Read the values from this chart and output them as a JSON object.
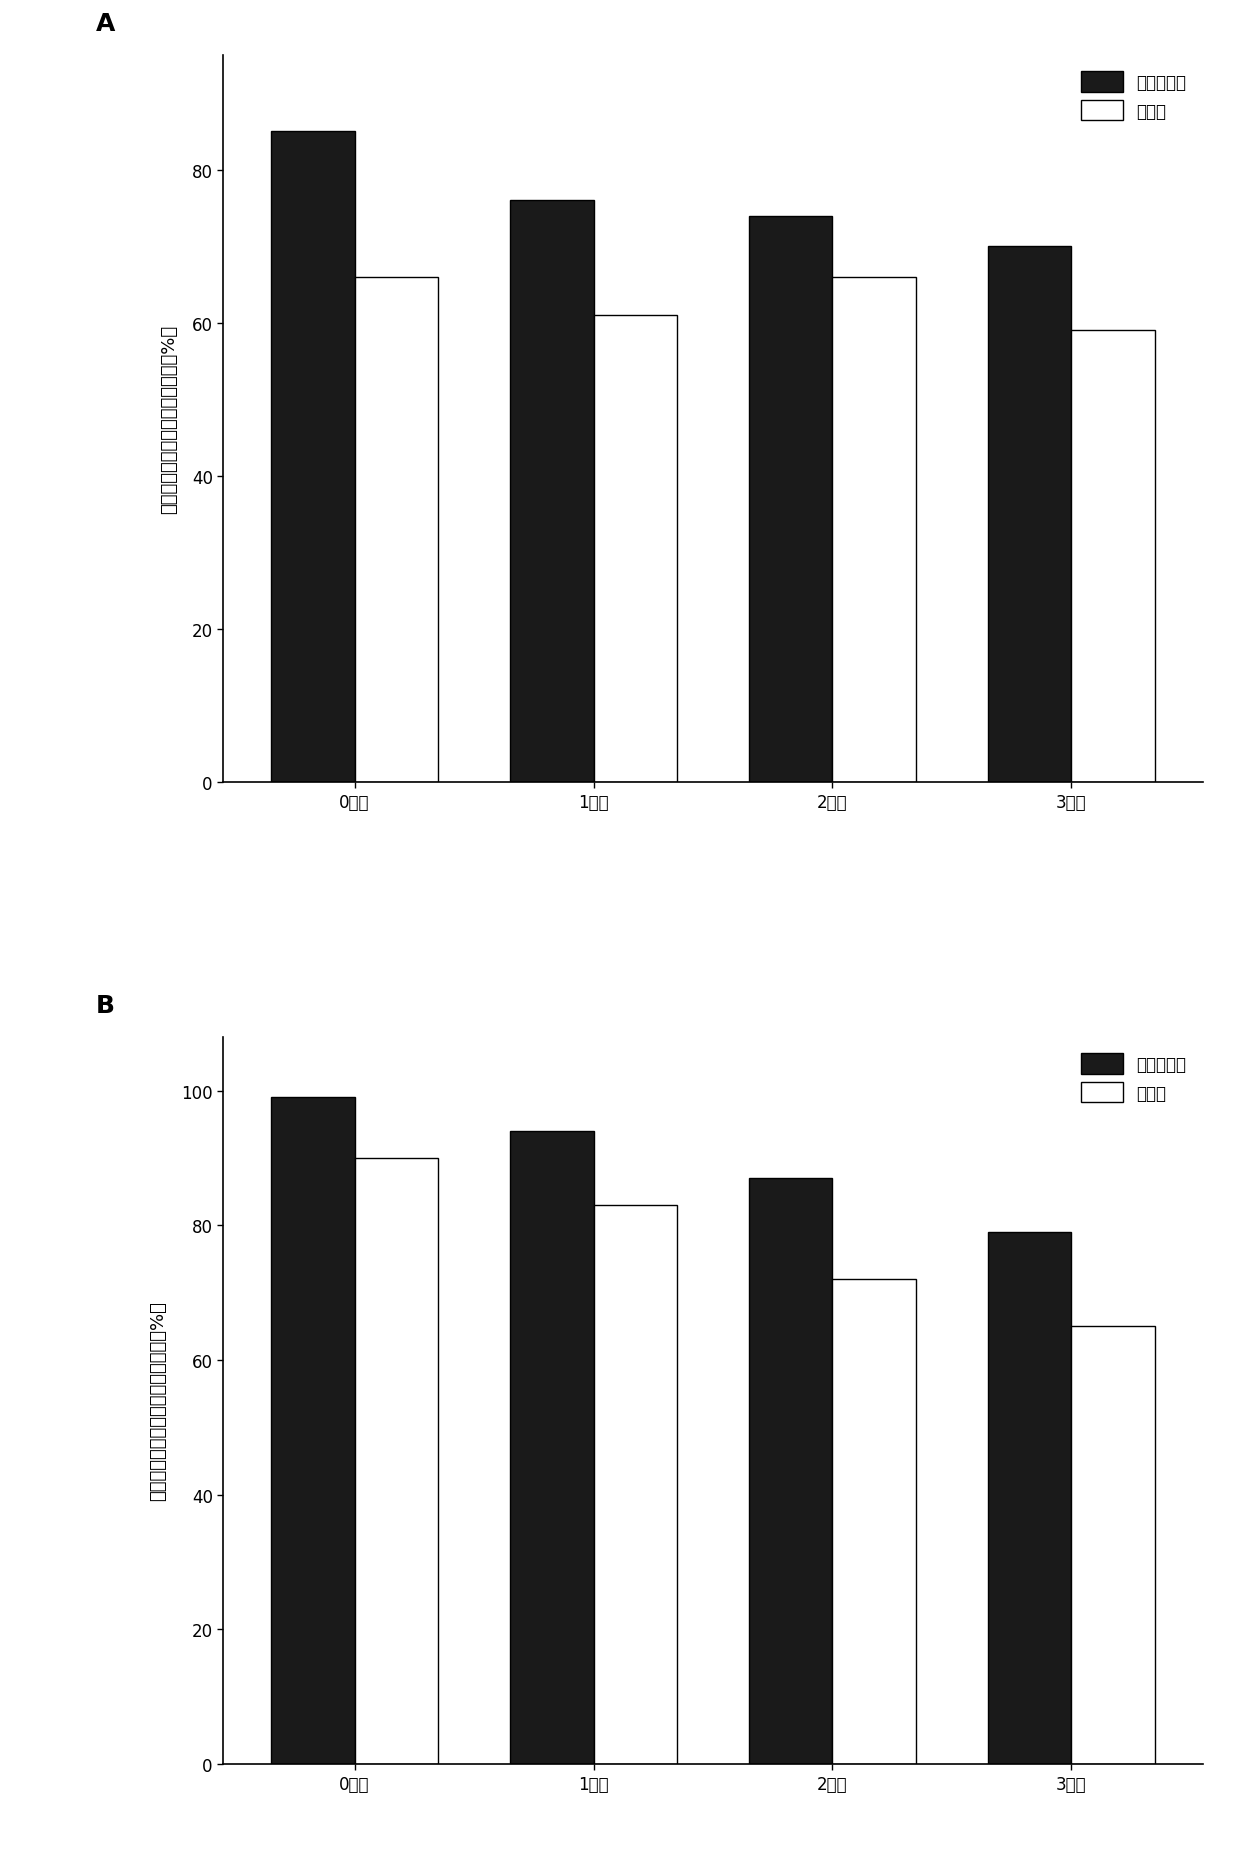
{
  "panel_A": {
    "categories": [
      "0个月",
      "1个月",
      "2个月",
      "3个月"
    ],
    "black_values": [
      85,
      76,
      74,
      70
    ],
    "white_values": [
      66,
      61,
      66,
      59
    ],
    "ylabel_chars": [
      "复",
      "方",
      "孕",
      "三",
      "烯",
      "酮",
      "片",
      "中",
      "炀",
      "雌",
      "醇",
      "溡",
      "出",
      "度",
      "（",
      "%",
      "）"
    ],
    "yticks": [
      0,
      20,
      40,
      60,
      80
    ],
    "ylim": [
      0,
      95
    ],
    "legend_labels": [
      "本发明制剂",
      "普通片"
    ],
    "panel_label": "A"
  },
  "panel_B": {
    "categories": [
      "0个月",
      "1个月",
      "2个月",
      "3个月"
    ],
    "black_values": [
      99,
      94,
      87,
      79
    ],
    "white_values": [
      90,
      83,
      72,
      65
    ],
    "ylabel_chars": [
      "复",
      "方",
      "孕",
      "二",
      "烯",
      "酮",
      "片",
      "中",
      "孕",
      "二",
      "烯",
      "酮",
      "溡",
      "出",
      "度",
      "（",
      "%",
      "）"
    ],
    "yticks": [
      0,
      20,
      40,
      60,
      80,
      100
    ],
    "ylim": [
      0,
      108
    ],
    "legend_labels": [
      "本发明制剂",
      "普通片"
    ],
    "panel_label": "B"
  },
  "bar_width": 0.35,
  "black_color": "#1a1a1a",
  "white_color": "#ffffff",
  "edge_color": "#000000",
  "background_color": "#ffffff",
  "fontsize_label": 13,
  "fontsize_tick": 12,
  "fontsize_legend": 12,
  "fontsize_panel": 18
}
